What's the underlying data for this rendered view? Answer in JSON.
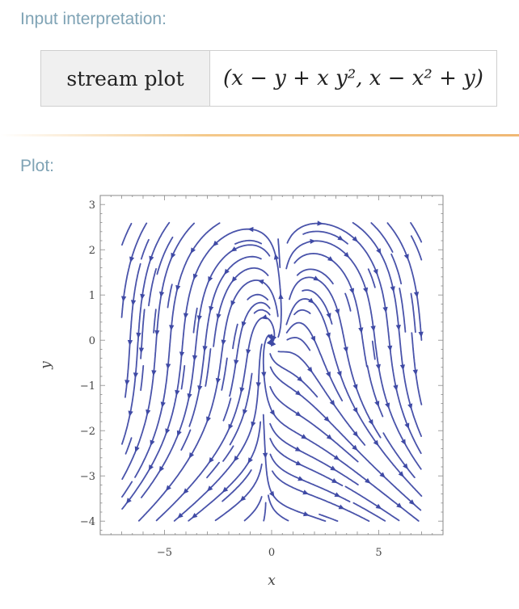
{
  "sections": {
    "input_heading": "Input interpretation:",
    "plot_heading": "Plot:"
  },
  "interpretation": {
    "command": "stream plot",
    "expression": "(x − y + x y², x − x² + y)"
  },
  "chart_data": {
    "type": "stream",
    "title": "",
    "xlabel": "x",
    "ylabel": "y",
    "xlim": [
      -8,
      8
    ],
    "ylim": [
      -4.3,
      3.2
    ],
    "x_ticks": [
      -5,
      0,
      5
    ],
    "y_ticks": [
      3,
      2,
      1,
      0,
      -1,
      -2,
      -3,
      -4
    ],
    "field": {
      "u": "x - y + x*y^2",
      "v": "x - x^2 + y"
    },
    "domain": {
      "x": [
        -7,
        7
      ],
      "y": [
        -4,
        2.6
      ]
    },
    "line_color": "#3f4aa5",
    "frame_color": "#888888"
  }
}
